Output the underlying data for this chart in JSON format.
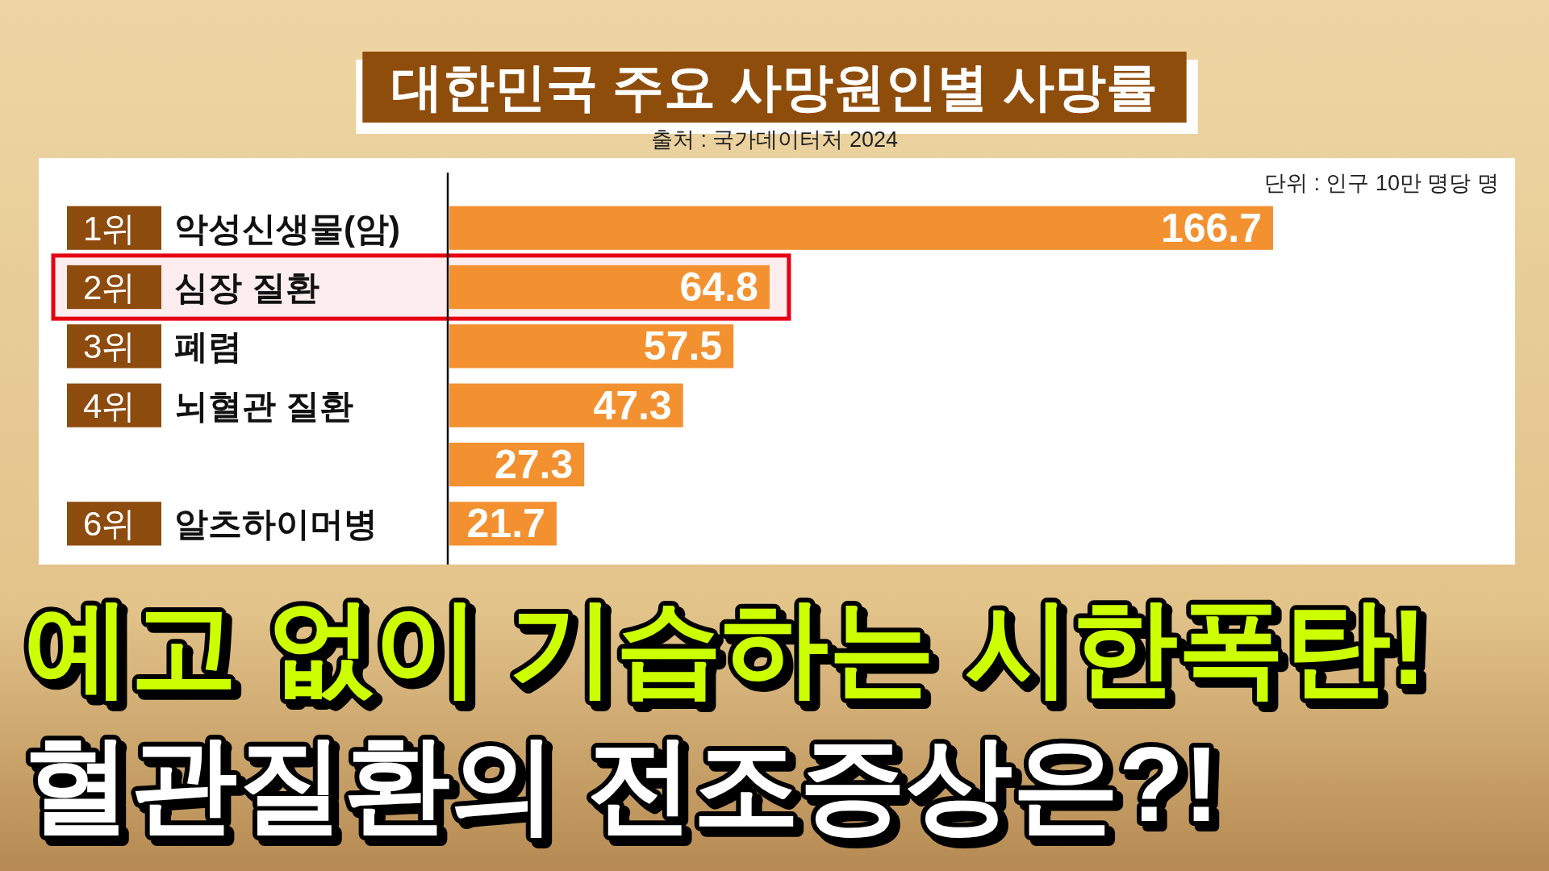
{
  "chart_data": {
    "type": "bar",
    "orientation": "horizontal",
    "title": "대한민국 주요 사망원인별 사망률",
    "categories": [
      "1위 악성신생물(암)",
      "2위 심장 질환",
      "3위 폐렴",
      "4위 뇌혈관 질환",
      null,
      "6위 알츠하이머병"
    ],
    "values": [
      166.7,
      64.8,
      57.5,
      47.3,
      27.3,
      21.7
    ],
    "color": "#f39130",
    "data_labels": true,
    "bands": [
      {
        "axis": "y",
        "from": "2위 심장 질환",
        "to": "2위 심장 질환",
        "color": "#e60012"
      }
    ],
    "annotations": [
      "출처 : 국가데이터처 2024",
      "단위 : 인구 10만 명당 명",
      "예고 없이 기습하는 시한폭탄!",
      "혈관질환의 전조증상은?!"
    ]
  }
}
